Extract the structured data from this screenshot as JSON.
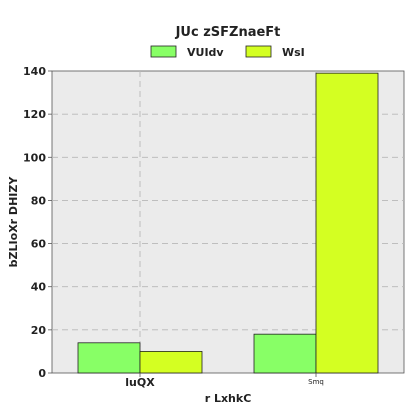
{
  "chart_data": {
    "type": "bar",
    "title": "JUc zSFZnaeFt",
    "xlabel": "r LxhkC",
    "ylabel": "bZLIoXr DHIZY",
    "categories": [
      "luQX",
      "Smq"
    ],
    "series": [
      {
        "name": "VUIdv",
        "values": [
          14,
          18
        ],
        "color": "#88ff66"
      },
      {
        "name": "WsI",
        "values": [
          10,
          139
        ],
        "color": "#d4ff22"
      }
    ],
    "ylim": [
      0,
      140
    ],
    "yticks": [
      0,
      20,
      40,
      60,
      80,
      100,
      120,
      140
    ],
    "grid": true,
    "legend": "top-center",
    "plot_background": "#ebebeb"
  }
}
